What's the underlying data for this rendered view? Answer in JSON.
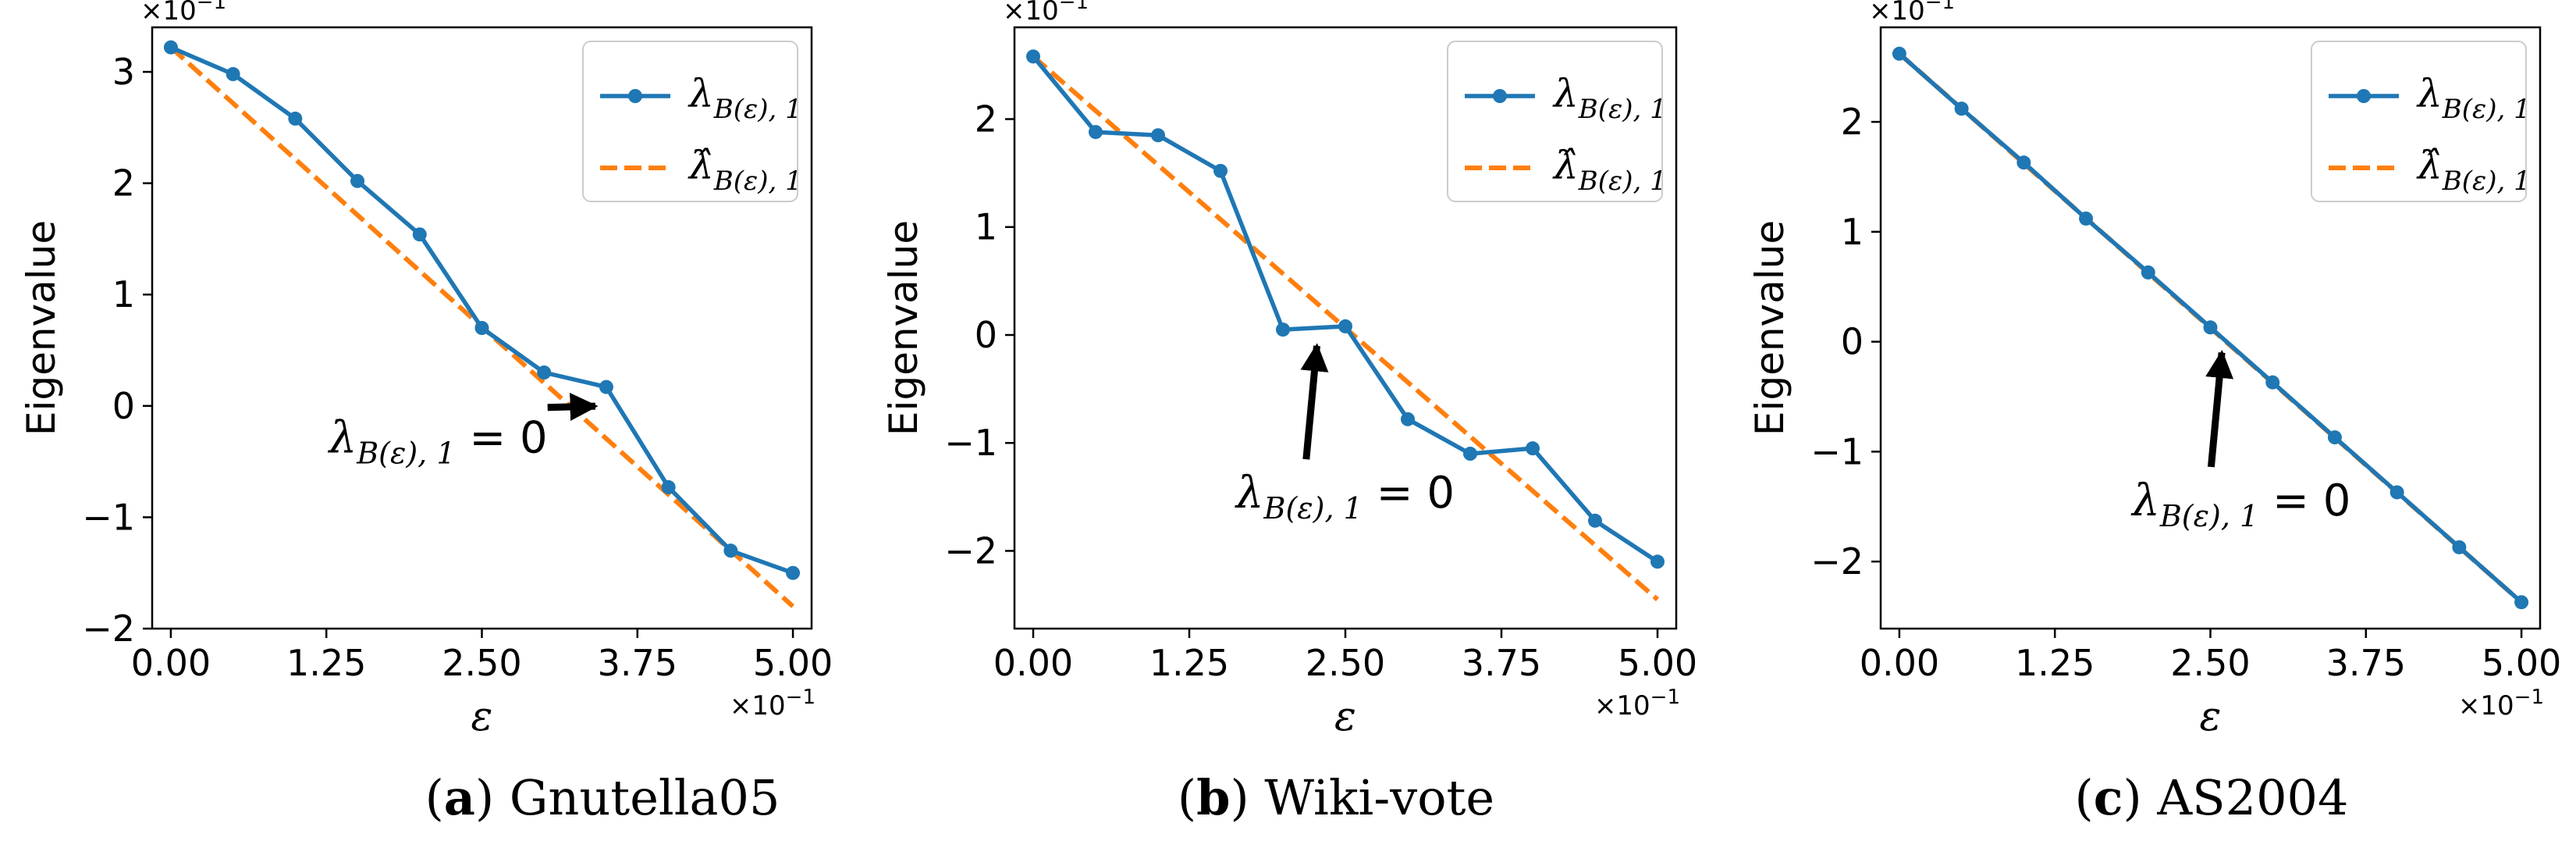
{
  "figure": {
    "colors": {
      "series": "#1f77b4",
      "fit": "#ff7f0e",
      "axis": "#000000",
      "arrow": "#000000"
    },
    "panels": [
      {
        "id": "a",
        "caption": {
          "letter": "a",
          "text": " Gnutella05"
        },
        "chart_data": {
          "type": "line",
          "xlabel": "ε",
          "ylabel": "Eigenvalue",
          "x_scale_label": "×10−1",
          "y_scale_label": "×10−1",
          "xlim": [
            -0.15,
            5.15
          ],
          "ylim": [
            -2.0,
            3.4
          ],
          "xticks": [
            0.0,
            1.25,
            2.5,
            3.75,
            5.0
          ],
          "xtick_labels": [
            "0.00",
            "1.25",
            "2.50",
            "3.75",
            "5.00"
          ],
          "yticks": [
            -2,
            -1,
            0,
            1,
            2,
            3
          ],
          "ytick_labels": [
            "−2",
            "−1",
            "0",
            "1",
            "2",
            "3"
          ],
          "series": [
            {
              "name": "λB(ε),1",
              "style": "line-marker",
              "x": [
                0.0,
                0.5,
                1.0,
                1.5,
                2.0,
                2.5,
                3.0,
                3.5,
                4.0,
                4.5,
                5.0
              ],
              "y": [
                3.22,
                2.98,
                2.58,
                2.02,
                1.54,
                0.7,
                0.3,
                0.17,
                -0.73,
                -1.3,
                -1.5
              ]
            },
            {
              "name": "λ̂B(ε),1",
              "style": "dashed",
              "x": [
                0.0,
                5.0
              ],
              "y": [
                3.22,
                -1.8
              ]
            }
          ],
          "legend": {
            "position": "top-right",
            "entries": [
              "λ",
              "λ̂"
            ],
            "sub": "B(ε), 1"
          },
          "annotation": {
            "text_main": "λ",
            "text_sub": "B(ε), 1",
            "text_tail": " = 0",
            "target": [
              3.5,
              0.0
            ],
            "text_at": [
              2.15,
              -0.42
            ]
          }
        }
      },
      {
        "id": "b",
        "caption": {
          "letter": "b",
          "text": " Wiki-vote"
        },
        "chart_data": {
          "type": "line",
          "xlabel": "ε",
          "ylabel": "Eigenvalue",
          "x_scale_label": "×10−1",
          "y_scale_label": "×10−1",
          "xlim": [
            -0.15,
            5.15
          ],
          "ylim": [
            -2.72,
            2.85
          ],
          "xticks": [
            0.0,
            1.25,
            2.5,
            3.75,
            5.0
          ],
          "xtick_labels": [
            "0.00",
            "1.25",
            "2.50",
            "3.75",
            "5.00"
          ],
          "yticks": [
            -2,
            -1,
            0,
            1,
            2
          ],
          "ytick_labels": [
            "−2",
            "−1",
            "0",
            "1",
            "2"
          ],
          "series": [
            {
              "name": "λB(ε),1",
              "style": "line-marker",
              "x": [
                0.0,
                0.5,
                1.0,
                1.5,
                2.0,
                2.5,
                3.0,
                3.5,
                4.0,
                4.5,
                5.0
              ],
              "y": [
                2.58,
                1.88,
                1.85,
                1.52,
                0.05,
                0.08,
                -0.78,
                -1.1,
                -1.05,
                -1.72,
                -2.1
              ]
            },
            {
              "name": "λ̂B(ε),1",
              "style": "dashed",
              "x": [
                0.0,
                5.0
              ],
              "y": [
                2.58,
                -2.45
              ]
            }
          ],
          "legend": {
            "position": "top-right",
            "entries": [
              "λ",
              "λ̂"
            ],
            "sub": "B(ε), 1"
          },
          "annotation": {
            "text_main": "λ",
            "text_sub": "B(ε), 1",
            "text_tail": " = 0",
            "target": [
              2.28,
              0.0
            ],
            "text_at": [
              2.5,
              -1.6
            ]
          }
        }
      },
      {
        "id": "c",
        "caption": {
          "letter": "c",
          "text": " AS2004"
        },
        "chart_data": {
          "type": "line",
          "xlabel": "ε",
          "ylabel": "Eigenvalue",
          "x_scale_label": "×10−1",
          "y_scale_label": "×10−1",
          "xlim": [
            -0.15,
            5.15
          ],
          "ylim": [
            -2.61,
            2.86
          ],
          "xticks": [
            0.0,
            1.25,
            2.5,
            3.75,
            5.0
          ],
          "xtick_labels": [
            "0.00",
            "1.25",
            "2.50",
            "3.75",
            "5.00"
          ],
          "yticks": [
            -2,
            -1,
            0,
            1,
            2
          ],
          "ytick_labels": [
            "−2",
            "−1",
            "0",
            "1",
            "2"
          ],
          "series": [
            {
              "name": "λB(ε),1",
              "style": "line-marker",
              "x": [
                0.0,
                0.5,
                1.0,
                1.5,
                2.0,
                2.5,
                3.0,
                3.5,
                4.0,
                4.5,
                5.0
              ],
              "y": [
                2.62,
                2.12,
                1.63,
                1.12,
                0.63,
                0.13,
                -0.37,
                -0.87,
                -1.37,
                -1.87,
                -2.37
              ]
            },
            {
              "name": "λ̂B(ε),1",
              "style": "dashed",
              "x": [
                0.0,
                5.0
              ],
              "y": [
                2.62,
                -2.37
              ]
            }
          ],
          "legend": {
            "position": "top-right",
            "entries": [
              "λ",
              "λ̂"
            ],
            "sub": "B(ε), 1"
          },
          "annotation": {
            "text_main": "λ",
            "text_sub": "B(ε), 1",
            "text_tail": " = 0",
            "target": [
              2.6,
              0.0
            ],
            "text_at": [
              2.75,
              -1.58
            ]
          }
        }
      }
    ]
  }
}
